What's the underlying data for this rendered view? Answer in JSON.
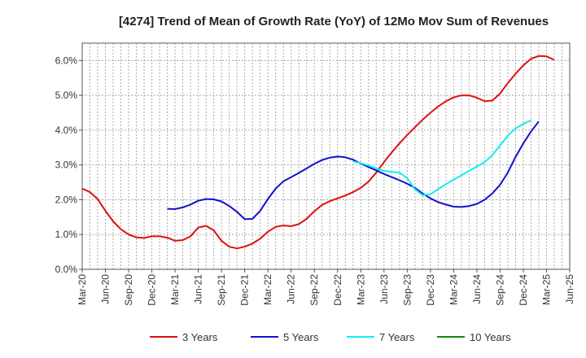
{
  "chart_data": {
    "type": "line",
    "title": "[4274]  Trend of Mean of Growth Rate (YoY) of 12Mo Mov Sum of Revenues",
    "xlabel": "",
    "ylabel": "",
    "ylim": [
      0,
      6.5
    ],
    "yticks": [
      0,
      1,
      2,
      3,
      4,
      5,
      6
    ],
    "ytick_labels": [
      "0.0%",
      "1.0%",
      "2.0%",
      "3.0%",
      "4.0%",
      "5.0%",
      "6.0%"
    ],
    "x_start": "Mar-20",
    "x_months": 63,
    "xtick_labels": [
      "Mar-20",
      "Jun-20",
      "Sep-20",
      "Dec-20",
      "Mar-21",
      "Jun-21",
      "Sep-21",
      "Dec-21",
      "Mar-22",
      "Jun-22",
      "Sep-22",
      "Dec-22",
      "Mar-23",
      "Jun-23",
      "Sep-23",
      "Dec-23",
      "Mar-24",
      "Jun-24",
      "Sep-24",
      "Dec-24",
      "Mar-25",
      "Jun-25"
    ],
    "grid": true,
    "legend_position": "bottom",
    "series": [
      {
        "name": "3 Years",
        "color": "#dd1111",
        "start_index": 0,
        "values": [
          2.32,
          2.22,
          2.02,
          1.68,
          1.38,
          1.15,
          1.0,
          0.92,
          0.9,
          0.95,
          0.95,
          0.91,
          0.82,
          0.84,
          0.95,
          1.2,
          1.25,
          1.12,
          0.82,
          0.65,
          0.6,
          0.65,
          0.74,
          0.88,
          1.08,
          1.22,
          1.26,
          1.24,
          1.3,
          1.45,
          1.67,
          1.85,
          1.96,
          2.04,
          2.12,
          2.22,
          2.34,
          2.52,
          2.78,
          3.08,
          3.36,
          3.62,
          3.86,
          4.08,
          4.3,
          4.5,
          4.68,
          4.83,
          4.94,
          5.0,
          5.0,
          4.93,
          4.83,
          4.85,
          5.05,
          5.35,
          5.62,
          5.86,
          6.05,
          6.13,
          6.12,
          6.02
        ]
      },
      {
        "name": "5 Years",
        "color": "#1111cc",
        "start_index": 11,
        "values": [
          1.74,
          1.73,
          1.78,
          1.86,
          1.97,
          2.02,
          2.01,
          1.95,
          1.82,
          1.65,
          1.44,
          1.45,
          1.68,
          2.02,
          2.32,
          2.53,
          2.65,
          2.77,
          2.9,
          3.03,
          3.14,
          3.21,
          3.24,
          3.22,
          3.15,
          3.04,
          2.94,
          2.84,
          2.74,
          2.65,
          2.56,
          2.46,
          2.34,
          2.18,
          2.04,
          1.93,
          1.86,
          1.8,
          1.79,
          1.82,
          1.88,
          2.0,
          2.18,
          2.43,
          2.78,
          3.23,
          3.62,
          3.96,
          4.25
        ]
      },
      {
        "name": "7 Years",
        "color": "#11eeee",
        "start_index": 35,
        "values": [
          3.1,
          3.05,
          2.98,
          2.9,
          2.83,
          2.8,
          2.78,
          2.62,
          2.3,
          2.13,
          2.16,
          2.3,
          2.45,
          2.58,
          2.7,
          2.83,
          2.95,
          3.08,
          3.28,
          3.56,
          3.84,
          4.05,
          4.18,
          4.28
        ]
      },
      {
        "name": "10 Years",
        "color": "#118811",
        "start_index": 0,
        "values": []
      }
    ]
  }
}
